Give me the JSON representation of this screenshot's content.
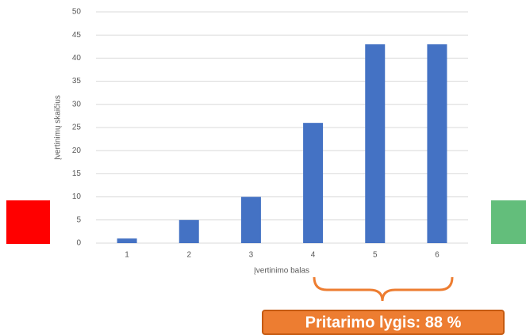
{
  "chart_data": {
    "type": "bar",
    "categories": [
      "1",
      "2",
      "3",
      "4",
      "5",
      "6"
    ],
    "values": [
      1,
      5,
      10,
      26,
      43,
      43
    ],
    "color": "#4472c4",
    "ylim": [
      0,
      50
    ],
    "yticks": [
      0,
      5,
      10,
      15,
      20,
      25,
      30,
      35,
      40,
      45,
      50
    ],
    "grid": true,
    "x_label": "Įvertinimo balas",
    "y_label": "Įvertinimų skaičius",
    "annotation": "Pritarimo lygis: 88 %"
  }
}
